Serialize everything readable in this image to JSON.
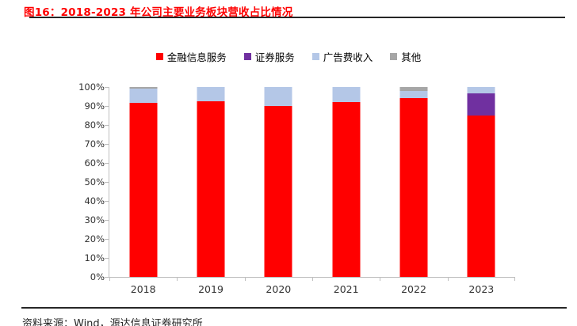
{
  "figure": {
    "title": "图16：2018-2023 年公司主要业务板块营收占比情况",
    "title_color": "#ff0000",
    "rule_color": "#262626",
    "source_note": "资料来源：Wind，源达信息证券研究所"
  },
  "chart_data": {
    "type": "bar",
    "subtype": "stacked-percent-column",
    "title": "",
    "xlabel": "",
    "ylabel": "",
    "ylim": [
      0,
      100
    ],
    "grid": false,
    "legend_position": "top",
    "categories": [
      "2018",
      "2019",
      "2020",
      "2021",
      "2022",
      "2023"
    ],
    "series": [
      {
        "name": "金融信息服务",
        "color": "#ff0000",
        "values": [
          91.7,
          92.5,
          89.8,
          92.2,
          94.3,
          85.0
        ]
      },
      {
        "name": "证券服务",
        "color": "#7030a0",
        "values": [
          0,
          0,
          0,
          0,
          0,
          11.5
        ]
      },
      {
        "name": "广告费收入",
        "color": "#b4c7e7",
        "values": [
          7.3,
          7.5,
          10.2,
          7.8,
          3.5,
          3.5
        ]
      },
      {
        "name": "其他",
        "color": "#a6a6a6",
        "values": [
          1.0,
          0,
          0,
          0,
          2.2,
          0
        ]
      }
    ],
    "y_ticks": [
      "100%",
      "90%",
      "80%",
      "70%",
      "60%",
      "50%",
      "40%",
      "30%",
      "20%",
      "10%",
      "0%"
    ],
    "axis_color": "#bfbfbf"
  }
}
